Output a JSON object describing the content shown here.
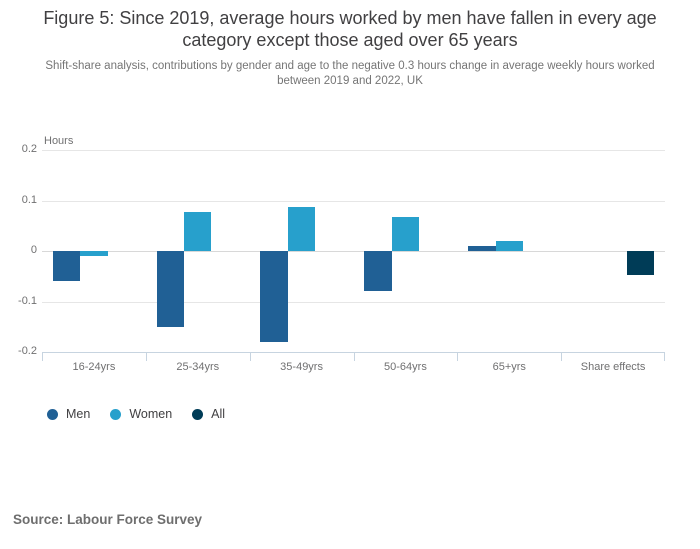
{
  "chart_data": {
    "type": "bar",
    "title": "Figure 5: Since 2019, average hours worked by men have fallen in every age category except those aged over 65 years",
    "subtitle": "Shift-share analysis, contributions by gender and age to the negative 0.3 hours change in average weekly hours worked between 2019 and 2022, UK",
    "xlabel": "",
    "ylabel": "Hours",
    "categories": [
      "16-24yrs",
      "25-34yrs",
      "35-49yrs",
      "50-64yrs",
      "65+yrs",
      "Share effects"
    ],
    "series": [
      {
        "name": "Men",
        "color": "#206095",
        "values": [
          -0.06,
          -0.15,
          -0.18,
          -0.08,
          0.01,
          null
        ]
      },
      {
        "name": "Women",
        "color": "#27A0CC",
        "values": [
          -0.01,
          0.078,
          0.088,
          0.068,
          0.02,
          null
        ]
      },
      {
        "name": "All",
        "color": "#003C57",
        "values": [
          null,
          null,
          null,
          null,
          null,
          -0.048
        ]
      }
    ],
    "ylim": [
      -0.2,
      0.2
    ],
    "yticks": [
      0.2,
      0.1,
      0,
      -0.1,
      -0.2
    ],
    "grid": true,
    "legend_position": "bottom-left"
  },
  "footer": {
    "source": "Source: Labour Force Survey"
  }
}
